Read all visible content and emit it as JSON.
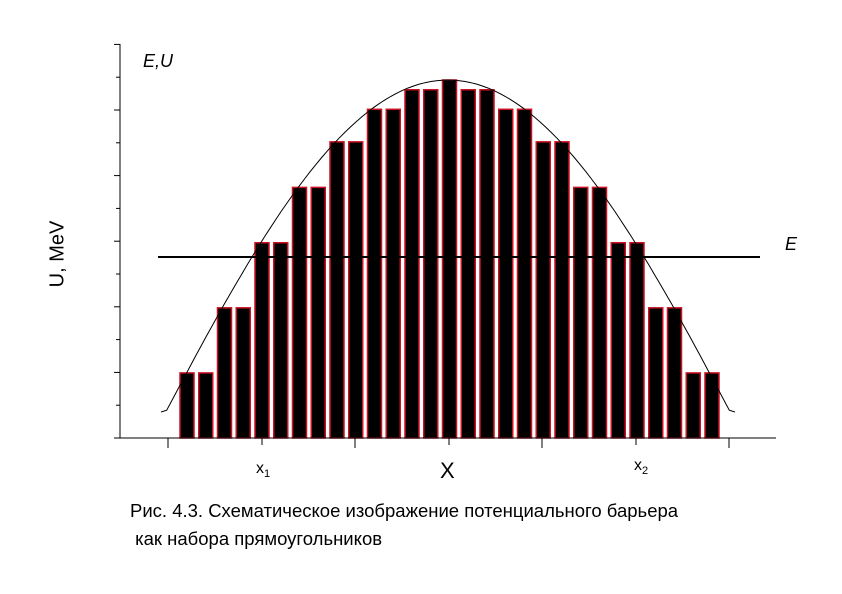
{
  "chart_data": {
    "type": "bar",
    "ylabel": "U, MeV",
    "corner_label": "E,U",
    "energy_label": "E",
    "xlabel": "X",
    "x1_label": {
      "base": "x",
      "sub": "1"
    },
    "x2_label": {
      "base": "x",
      "sub": "2"
    },
    "ylim": [
      0,
      1.2
    ],
    "energy_level": 0.6,
    "barrier_peak": 1.1,
    "bars": [
      0.2,
      0.2,
      0.4,
      0.4,
      0.6,
      0.6,
      0.77,
      0.77,
      0.91,
      0.91,
      1.01,
      1.01,
      1.07,
      1.07,
      1.1,
      1.07,
      1.07,
      1.01,
      1.01,
      0.91,
      0.91,
      0.77,
      0.77,
      0.6,
      0.6,
      0.4,
      0.4,
      0.2,
      0.2
    ],
    "colors": {
      "bar_fill": "#000000",
      "bar_edge": "#cc1122",
      "axis": "#000000",
      "curve": "#000000"
    }
  },
  "caption": {
    "line1": "Рис. 4.3. Схематическое изображение потенциального барьера",
    "line2": " как набора прямоугольников"
  }
}
